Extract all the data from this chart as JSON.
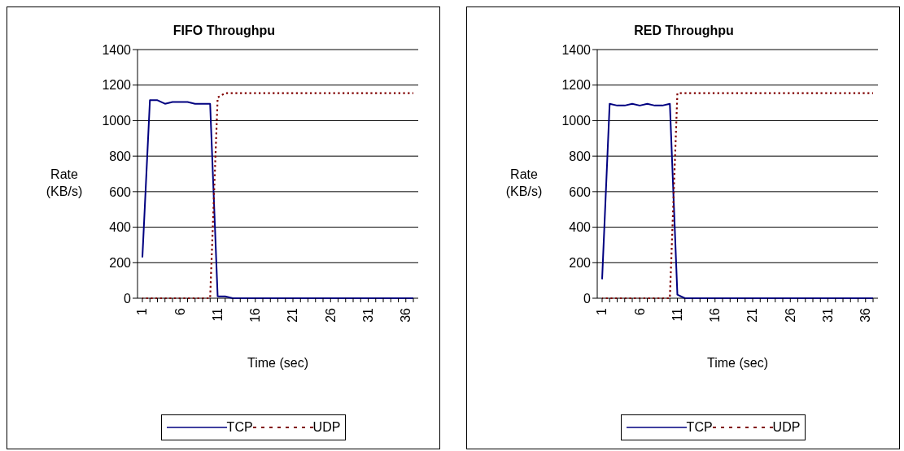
{
  "chart_data": [
    {
      "type": "line",
      "title": "FIFO Throughpu",
      "xlabel": "Time (sec)",
      "ylabel": "Rate (KB/s)",
      "categories": [
        "1",
        null,
        null,
        null,
        null,
        "6",
        null,
        null,
        null,
        null,
        "11",
        null,
        null,
        null,
        null,
        "16",
        null,
        null,
        null,
        null,
        "21",
        null,
        null,
        null,
        null,
        "26",
        null,
        null,
        null,
        null,
        "31",
        null,
        null,
        null,
        null,
        "36",
        null
      ],
      "series": [
        {
          "name": "TCP",
          "color": "#000080",
          "line_style": "solid",
          "values": [
            230,
            1115,
            1115,
            1095,
            1105,
            1105,
            1105,
            1095,
            1095,
            1095,
            10,
            10,
            0,
            0,
            0,
            0,
            0,
            0,
            0,
            0,
            0,
            0,
            0,
            0,
            0,
            0,
            0,
            0,
            0,
            0,
            0,
            0,
            0,
            0,
            0,
            0,
            0
          ]
        },
        {
          "name": "UDP",
          "color": "#800000",
          "line_style": "dotted",
          "values": [
            0,
            0,
            0,
            0,
            0,
            0,
            0,
            0,
            0,
            0,
            1130,
            1155,
            1155,
            1155,
            1155,
            1155,
            1155,
            1155,
            1155,
            1155,
            1155,
            1155,
            1155,
            1155,
            1155,
            1155,
            1155,
            1155,
            1155,
            1155,
            1155,
            1155,
            1155,
            1155,
            1155,
            1155,
            1155
          ]
        }
      ],
      "ylim": [
        0,
        1400
      ],
      "yticks": [
        0,
        200,
        400,
        600,
        800,
        1000,
        1200,
        1400
      ],
      "grid": "y",
      "legend": "bottom"
    },
    {
      "type": "line",
      "title": "RED Throughpu",
      "xlabel": "Time (sec)",
      "ylabel": "Rate (KB/s)",
      "categories": [
        "1",
        null,
        null,
        null,
        null,
        "6",
        null,
        null,
        null,
        null,
        "11",
        null,
        null,
        null,
        null,
        "16",
        null,
        null,
        null,
        null,
        "21",
        null,
        null,
        null,
        null,
        "26",
        null,
        null,
        null,
        null,
        "31",
        null,
        null,
        null,
        null,
        "36",
        null
      ],
      "series": [
        {
          "name": "TCP",
          "color": "#000080",
          "line_style": "solid",
          "values": [
            107,
            1095,
            1085,
            1085,
            1095,
            1085,
            1095,
            1085,
            1085,
            1095,
            20,
            0,
            0,
            0,
            0,
            0,
            0,
            0,
            0,
            0,
            0,
            0,
            0,
            0,
            0,
            0,
            0,
            0,
            0,
            0,
            0,
            0,
            0,
            0,
            0,
            0,
            0
          ]
        },
        {
          "name": "UDP",
          "color": "#800000",
          "line_style": "dotted",
          "values": [
            0,
            0,
            0,
            0,
            0,
            0,
            0,
            0,
            0,
            0,
            1155,
            1155,
            1155,
            1155,
            1155,
            1155,
            1155,
            1155,
            1155,
            1155,
            1155,
            1155,
            1155,
            1155,
            1155,
            1155,
            1155,
            1155,
            1155,
            1155,
            1155,
            1155,
            1155,
            1155,
            1155,
            1155,
            1155
          ]
        }
      ],
      "ylim": [
        0,
        1400
      ],
      "yticks": [
        0,
        200,
        400,
        600,
        800,
        1000,
        1200,
        1400
      ],
      "grid": "y",
      "legend": "bottom"
    }
  ]
}
